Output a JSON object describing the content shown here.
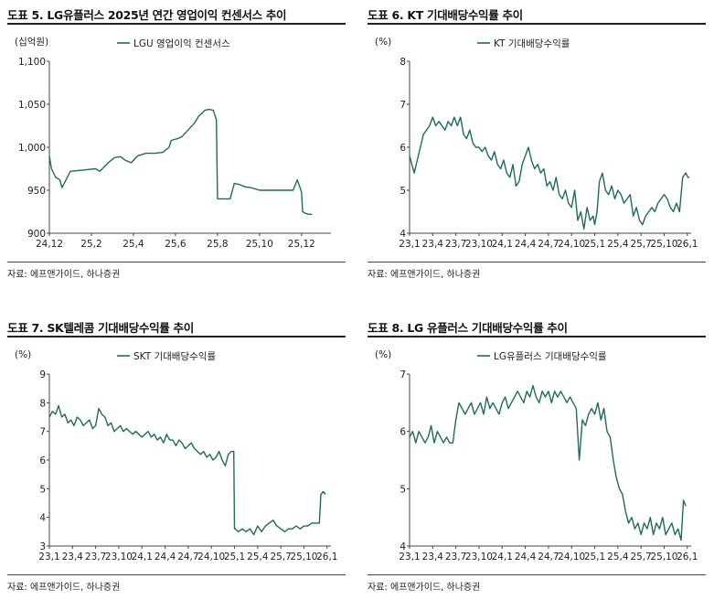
{
  "colors": {
    "line": "#1f6b5c",
    "axis": "#444444",
    "title_rule": "#222222"
  },
  "charts": [
    {
      "figure": "5",
      "title": "도표 5. LG유플러스 2025년 연간 영업이익 컨센서스 추이",
      "source": "자료: 에프앤가이드, 하나증권",
      "chart_data": {
        "type": "line",
        "unit": "(십억원)",
        "legend": "LGU 영업이익 컨센서스",
        "ylim": [
          900,
          1100
        ],
        "yticks": [
          "1,100",
          "1,050",
          "1,000",
          "950",
          "900"
        ],
        "ytick_values": [
          1100,
          1050,
          1000,
          950,
          900
        ],
        "xlim": [
          0,
          13.4
        ],
        "xticks": [
          "24,12",
          "25,2",
          "25,4",
          "25,6",
          "25,8",
          "25,10",
          "25,12"
        ],
        "xtick_values": [
          0,
          2,
          4,
          6,
          8,
          10,
          12
        ],
        "series": [
          {
            "name": "LGU 영업이익 컨센서스",
            "x": [
              0,
              0.1,
              0.3,
              0.5,
              0.6,
              1.0,
              1.4,
              1.8,
              2.2,
              2.4,
              2.8,
              3.1,
              3.4,
              3.6,
              3.9,
              4.2,
              4.6,
              5.0,
              5.4,
              5.7,
              5.8,
              6.1,
              6.3,
              6.6,
              6.9,
              7.1,
              7.4,
              7.6,
              7.8,
              7.95,
              8.0,
              8.3,
              8.6,
              8.8,
              9.0,
              9.3,
              9.6,
              10.0,
              10.4,
              10.8,
              11.2,
              11.6,
              11.8,
              11.9,
              12.0,
              12.05,
              12.2,
              12.35,
              12.5
            ],
            "y": [
              990,
              975,
              965,
              962,
              953,
              972,
              973,
              974,
              975,
              972,
              982,
              988,
              989,
              985,
              982,
              990,
              993,
              993,
              994,
              1000,
              1008,
              1010,
              1012,
              1020,
              1028,
              1036,
              1043,
              1044,
              1043,
              1032,
              940,
              940,
              940,
              958,
              957,
              954,
              953,
              950,
              950,
              950,
              950,
              950,
              962,
              955,
              948,
              925,
              923,
              922,
              922
            ]
          }
        ]
      }
    },
    {
      "figure": "6",
      "title": "도표 6. KT 기대배당수익률 추이",
      "source": "자료: 에프앤가이드, 하나증권",
      "chart_data": {
        "type": "line",
        "unit": "(%)",
        "legend": "KT 기대배당수익률",
        "ylim": [
          4,
          8
        ],
        "yticks": [
          "8",
          "7",
          "6",
          "5",
          "4"
        ],
        "ytick_values": [
          8,
          7,
          6,
          5,
          4
        ],
        "xlim": [
          0,
          36.5
        ],
        "xticks": [
          "23,1",
          "23,4",
          "23,7",
          "23,10",
          "24,1",
          "24,4",
          "24,7",
          "24,10",
          "25,1",
          "25,4",
          "25,7",
          "25,10",
          "26,1"
        ],
        "xtick_values": [
          0,
          3,
          6,
          9,
          12,
          15,
          18,
          21,
          24,
          27,
          30,
          33,
          36
        ],
        "series": [
          {
            "name": "KT 기대배당수익률",
            "x": [
              0,
              0.3,
              0.6,
              1.0,
              1.4,
              1.8,
              2.2,
              2.6,
              3.0,
              3.4,
              3.8,
              4.2,
              4.6,
              5.0,
              5.4,
              5.8,
              6.2,
              6.6,
              7.0,
              7.4,
              7.8,
              8.2,
              8.6,
              9.0,
              9.4,
              9.8,
              10.2,
              10.6,
              11.0,
              11.4,
              11.8,
              12.2,
              12.6,
              13.0,
              13.4,
              13.8,
              14.2,
              14.6,
              15.0,
              15.4,
              15.8,
              16.2,
              16.6,
              17.0,
              17.4,
              17.8,
              18.2,
              18.6,
              19.0,
              19.4,
              19.8,
              20.2,
              20.6,
              21.0,
              21.4,
              21.8,
              22.2,
              22.6,
              23.0,
              23.4,
              23.8,
              24.0,
              24.3,
              24.6,
              25.0,
              25.4,
              25.8,
              26.2,
              26.6,
              27.0,
              27.4,
              27.8,
              28.2,
              28.6,
              29.0,
              29.4,
              29.8,
              30.2,
              30.6,
              31.0,
              31.4,
              31.8,
              32.2,
              32.6,
              33.0,
              33.4,
              33.8,
              34.2,
              34.6,
              35.0,
              35.4,
              35.8,
              36.1,
              36.3
            ],
            "y": [
              5.8,
              5.6,
              5.4,
              5.7,
              6.0,
              6.3,
              6.4,
              6.5,
              6.7,
              6.5,
              6.6,
              6.5,
              6.4,
              6.6,
              6.5,
              6.7,
              6.5,
              6.7,
              6.3,
              6.2,
              6.4,
              6.1,
              6.0,
              6.0,
              5.9,
              6.0,
              5.8,
              5.7,
              5.9,
              5.6,
              5.5,
              5.7,
              5.4,
              5.3,
              5.6,
              5.1,
              5.2,
              5.6,
              5.8,
              6.0,
              5.7,
              5.5,
              5.6,
              5.4,
              5.5,
              5.1,
              5.2,
              5.0,
              5.3,
              4.9,
              4.8,
              5.0,
              4.7,
              4.6,
              5.0,
              4.3,
              4.5,
              4.1,
              4.6,
              4.3,
              4.4,
              4.2,
              4.5,
              5.2,
              5.4,
              5.0,
              4.9,
              5.1,
              4.8,
              5.0,
              4.9,
              4.7,
              4.8,
              4.9,
              4.4,
              4.6,
              4.3,
              4.2,
              4.4,
              4.5,
              4.6,
              4.5,
              4.7,
              4.8,
              4.9,
              4.8,
              4.6,
              4.5,
              4.7,
              4.5,
              5.3,
              5.4,
              5.3,
              5.3
            ]
          }
        ]
      }
    },
    {
      "figure": "7",
      "title": "도표 7. SK텔레콤 기대배당수익률 추이",
      "source": "자료: 에프앤가이드, 하나증권",
      "chart_data": {
        "type": "line",
        "unit": "(%)",
        "legend": "SKT 기대배당수익률",
        "ylim": [
          3,
          9
        ],
        "yticks": [
          "9",
          "8",
          "7",
          "6",
          "5",
          "4",
          "3"
        ],
        "ytick_values": [
          9,
          8,
          7,
          6,
          5,
          4,
          3
        ],
        "xlim": [
          0,
          36.5
        ],
        "xticks": [
          "23,1",
          "23,4",
          "23,7",
          "23,10",
          "24,1",
          "24,4",
          "24,7",
          "24,10",
          "25,1",
          "25,4",
          "25,7",
          "25,10",
          "26,1"
        ],
        "xtick_values": [
          0,
          3,
          6,
          9,
          12,
          15,
          18,
          21,
          24,
          27,
          30,
          33,
          36
        ],
        "series": [
          {
            "name": "SKT 기대배당수익률",
            "x": [
              0,
              0.4,
              0.8,
              1.2,
              1.6,
              2.0,
              2.4,
              2.8,
              3.2,
              3.6,
              4.0,
              4.4,
              4.8,
              5.2,
              5.6,
              6.0,
              6.4,
              6.8,
              7.2,
              7.6,
              8.0,
              8.4,
              8.8,
              9.2,
              9.6,
              10.0,
              10.4,
              10.8,
              11.2,
              11.6,
              12.0,
              12.4,
              12.8,
              13.2,
              13.6,
              14.0,
              14.4,
              14.8,
              15.2,
              15.6,
              16.0,
              16.4,
              16.8,
              17.2,
              17.6,
              18.0,
              18.4,
              18.8,
              19.2,
              19.6,
              20.0,
              20.4,
              20.8,
              21.2,
              21.6,
              22.0,
              22.4,
              22.8,
              23.2,
              23.6,
              23.9,
              24.0,
              24.1,
              24.5,
              25.0,
              25.5,
              26.0,
              26.5,
              27.0,
              27.5,
              28.0,
              28.5,
              29.0,
              29.5,
              30.0,
              30.5,
              31.0,
              31.5,
              32.0,
              32.5,
              33.0,
              33.5,
              34.0,
              34.5,
              35.0,
              35.2,
              35.5,
              35.8
            ],
            "y": [
              7.5,
              7.7,
              7.6,
              7.9,
              7.5,
              7.6,
              7.3,
              7.4,
              7.2,
              7.5,
              7.4,
              7.2,
              7.3,
              7.4,
              7.1,
              7.2,
              7.8,
              7.6,
              7.5,
              7.2,
              7.3,
              7.0,
              7.1,
              7.2,
              7.0,
              7.1,
              7.0,
              6.9,
              7.0,
              6.9,
              6.8,
              6.9,
              7.0,
              6.8,
              6.9,
              6.7,
              6.8,
              6.6,
              6.9,
              6.7,
              6.7,
              6.5,
              6.7,
              6.6,
              6.4,
              6.5,
              6.6,
              6.4,
              6.3,
              6.2,
              6.3,
              6.1,
              6.2,
              6.0,
              6.1,
              6.3,
              6.0,
              5.8,
              6.2,
              6.3,
              6.3,
              3.6,
              3.6,
              3.5,
              3.6,
              3.5,
              3.6,
              3.4,
              3.7,
              3.5,
              3.7,
              3.8,
              3.9,
              3.7,
              3.6,
              3.5,
              3.6,
              3.6,
              3.7,
              3.6,
              3.7,
              3.7,
              3.8,
              3.8,
              3.8,
              4.8,
              4.9,
              4.8
            ]
          }
        ]
      }
    },
    {
      "figure": "8",
      "title": "도표 8. LG 유플러스 기대배당수익률 추이",
      "source": "자료: 에프앤가이드, 하나증권",
      "chart_data": {
        "type": "line",
        "unit": "(%)",
        "legend": "LG유플러스 기대배당수익률",
        "ylim": [
          4,
          7
        ],
        "yticks": [
          "7",
          "6",
          "5",
          "4"
        ],
        "ytick_values": [
          7,
          6,
          5,
          4
        ],
        "xlim": [
          0,
          36.5
        ],
        "xticks": [
          "23,1",
          "23,4",
          "23,7",
          "23,10",
          "24,1",
          "24,4",
          "24,7",
          "24,10",
          "25,1",
          "25,4",
          "25,7",
          "25,10",
          "26,1"
        ],
        "xtick_values": [
          0,
          3,
          6,
          9,
          12,
          15,
          18,
          21,
          24,
          27,
          30,
          33,
          36
        ],
        "series": [
          {
            "name": "LG유플러스 기대배당수익률",
            "x": [
              0,
              0.4,
              0.8,
              1.2,
              1.6,
              2.0,
              2.4,
              2.8,
              3.2,
              3.6,
              4.0,
              4.4,
              4.8,
              5.2,
              5.6,
              6.0,
              6.4,
              6.8,
              7.2,
              7.6,
              8.0,
              8.4,
              8.8,
              9.2,
              9.6,
              10.0,
              10.4,
              10.8,
              11.2,
              11.6,
              12.0,
              12.4,
              12.8,
              13.2,
              13.6,
              14.0,
              14.4,
              14.8,
              15.2,
              15.6,
              16.0,
              16.4,
              16.8,
              17.2,
              17.6,
              18.0,
              18.4,
              18.8,
              19.2,
              19.6,
              20.0,
              20.4,
              20.8,
              21.2,
              21.6,
              22.0,
              22.4,
              22.8,
              23.2,
              23.6,
              24.0,
              24.4,
              24.8,
              25.2,
              25.6,
              26.0,
              26.4,
              26.8,
              27.2,
              27.6,
              28.0,
              28.4,
              28.8,
              29.2,
              29.6,
              30.0,
              30.4,
              30.8,
              31.2,
              31.6,
              32.0,
              32.4,
              32.8,
              33.2,
              33.6,
              34.0,
              34.4,
              34.8,
              35.2,
              35.5,
              35.8
            ],
            "y": [
              5.9,
              6.0,
              5.8,
              6.0,
              5.9,
              5.8,
              5.9,
              6.1,
              5.8,
              6.0,
              5.9,
              5.8,
              5.9,
              5.8,
              5.8,
              6.2,
              6.5,
              6.4,
              6.3,
              6.4,
              6.5,
              6.3,
              6.4,
              6.5,
              6.3,
              6.6,
              6.4,
              6.5,
              6.4,
              6.3,
              6.5,
              6.6,
              6.4,
              6.5,
              6.6,
              6.7,
              6.6,
              6.5,
              6.7,
              6.6,
              6.8,
              6.6,
              6.5,
              6.7,
              6.6,
              6.7,
              6.5,
              6.7,
              6.6,
              6.7,
              6.6,
              6.5,
              6.6,
              6.5,
              6.4,
              5.5,
              6.2,
              6.1,
              6.3,
              6.4,
              6.3,
              6.5,
              6.2,
              6.4,
              6.0,
              5.9,
              5.5,
              5.2,
              5.0,
              4.9,
              4.6,
              4.4,
              4.5,
              4.3,
              4.4,
              4.2,
              4.4,
              4.3,
              4.5,
              4.2,
              4.4,
              4.3,
              4.5,
              4.2,
              4.3,
              4.4,
              4.2,
              4.3,
              4.1,
              4.8,
              4.7
            ]
          }
        ]
      }
    }
  ]
}
